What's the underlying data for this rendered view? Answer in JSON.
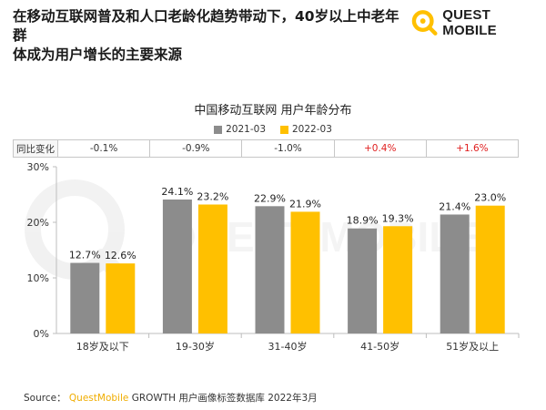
{
  "headline": {
    "line1": "在移动互联网普及和人口老龄化趋势带动下，40岁以上中老年群",
    "line2": "体成为用户增长的主要来源"
  },
  "logo": {
    "text": "QUEST MOBILE",
    "watermark_text": "QUEST MOBILE"
  },
  "colors": {
    "series_2021": "#8c8c8c",
    "series_2022": "#ffc000",
    "accent": "#f0ad00",
    "negative": "#333333",
    "positive": "#e02020"
  },
  "yoy": {
    "label": "同比变化",
    "values": [
      "-0.1%",
      "-0.9%",
      "-1.0%",
      "+0.4%",
      "+1.6%"
    ]
  },
  "chart_data": {
    "type": "bar",
    "title": "中国移动互联网 用户年龄分布",
    "categories": [
      "18岁及以下",
      "19-30岁",
      "31-40岁",
      "41-50岁",
      "51岁及以上"
    ],
    "series": [
      {
        "name": "2021-03",
        "values": [
          12.7,
          24.1,
          22.9,
          18.9,
          21.4
        ],
        "labels": [
          "12.7%",
          "24.1%",
          "22.9%",
          "18.9%",
          "21.4%"
        ]
      },
      {
        "name": "2022-03",
        "values": [
          12.6,
          23.2,
          21.9,
          19.3,
          23.0
        ],
        "labels": [
          "12.6%",
          "23.2%",
          "21.9%",
          "19.3%",
          "23.0%"
        ]
      }
    ],
    "ylim": [
      0,
      30
    ],
    "yticks": [
      0,
      10,
      20,
      30
    ],
    "ytick_labels": [
      "0%",
      "10%",
      "20%",
      "30%"
    ],
    "legend_position": "top-center",
    "grid": false
  },
  "source": {
    "prefix": "Source：",
    "brand": "QuestMobile",
    "text": "GROWTH 用户画像标签数据库 2022年3月"
  }
}
